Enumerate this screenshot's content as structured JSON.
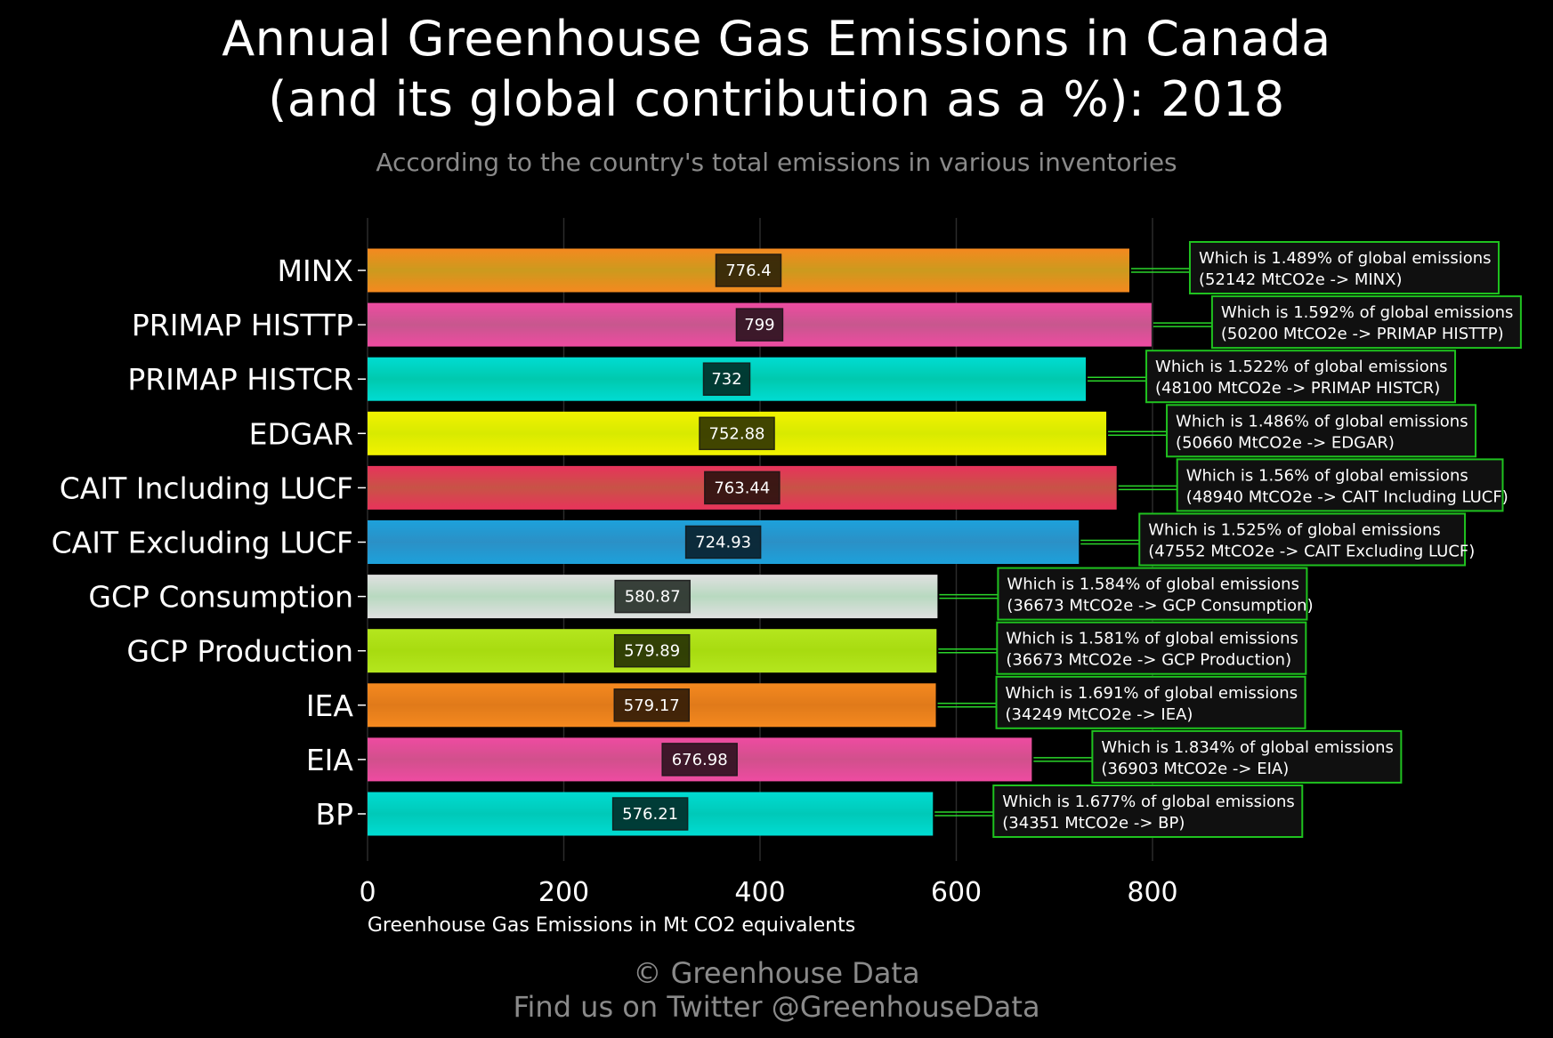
{
  "header": {
    "title_line1": "Annual Greenhouse Gas Emissions in Canada",
    "title_line2": "(and its global contribution as a %): 2018",
    "subtitle": "According to the country's total emissions in various inventories"
  },
  "footer": {
    "line1": "© Greenhouse Data",
    "line2": "Find us on Twitter @GreenhouseData"
  },
  "chart_data": {
    "type": "bar",
    "orientation": "horizontal",
    "title": "Annual Greenhouse Gas Emissions in Canada (and its global contribution as a %): 2018",
    "subtitle": "According to the country's total emissions in various inventories",
    "xlabel": "Greenhouse Gas Emissions in Mt CO2 equivalents",
    "ylabel": "",
    "xlim": [
      0,
      1000
    ],
    "xticks": [
      0,
      200,
      400,
      600,
      800
    ],
    "grid": "vertical",
    "categories": [
      "MINX",
      "PRIMAP HISTTP",
      "PRIMAP HISTCR",
      "EDGAR",
      "CAIT Including LUCF",
      "CAIT Excluding LUCF",
      "GCP Consumption",
      "GCP Production",
      "IEA",
      "EIA",
      "BP"
    ],
    "values": [
      776.4,
      799,
      732,
      752.88,
      763.44,
      724.93,
      580.87,
      579.89,
      579.17,
      676.98,
      576.21
    ],
    "value_labels": [
      "776.4",
      "799",
      "732",
      "752.88",
      "763.44",
      "724.93",
      "580.87",
      "579.89",
      "579.17",
      "676.98",
      "576.21"
    ],
    "colors": [
      "#f5891f",
      "#ee4ba1",
      "#00dcd2",
      "#f2f200",
      "#e8335b",
      "#1da1db",
      "#e0e0e0",
      "#b4e61e",
      "#f5891f",
      "#ee4ba1",
      "#00dcd2"
    ],
    "label_colors": [
      "#cc9a1e",
      "#c7578e",
      "#00c9ae",
      "#d8ea00",
      "#c85346",
      "#2b90c6",
      "#b8d9c0",
      "#a8db10",
      "#e07a1a",
      "#d1508c",
      "#00c9b8"
    ],
    "annotations": [
      {
        "line1": "Which is 1.489% of global emissions",
        "line2": "(52142 MtCO2e -> MINX)"
      },
      {
        "line1": "Which is 1.592% of global emissions",
        "line2": "(50200 MtCO2e -> PRIMAP HISTTP)"
      },
      {
        "line1": "Which is 1.522% of global emissions",
        "line2": "(48100 MtCO2e -> PRIMAP HISTCR)"
      },
      {
        "line1": "Which is 1.486% of global emissions",
        "line2": "(50660 MtCO2e -> EDGAR)"
      },
      {
        "line1": "Which is 1.56% of global emissions",
        "line2": "(48940 MtCO2e -> CAIT Including LUCF)"
      },
      {
        "line1": "Which is 1.525% of global emissions",
        "line2": "(47552 MtCO2e -> CAIT Excluding LUCF)"
      },
      {
        "line1": "Which is 1.584% of global emissions",
        "line2": "(36673 MtCO2e -> GCP Consumption)"
      },
      {
        "line1": "Which is 1.581% of global emissions",
        "line2": "(36673 MtCO2e -> GCP Production)"
      },
      {
        "line1": "Which is 1.691% of global emissions",
        "line2": "(34249 MtCO2e -> IEA)"
      },
      {
        "line1": "Which is 1.834% of global emissions",
        "line2": "(36903 MtCO2e -> EIA)"
      },
      {
        "line1": "Which is 1.677% of global emissions",
        "line2": "(34351 MtCO2e -> BP)"
      }
    ],
    "annotation_border_color": "#1fc21f",
    "connector_color": "#2ad62a"
  }
}
